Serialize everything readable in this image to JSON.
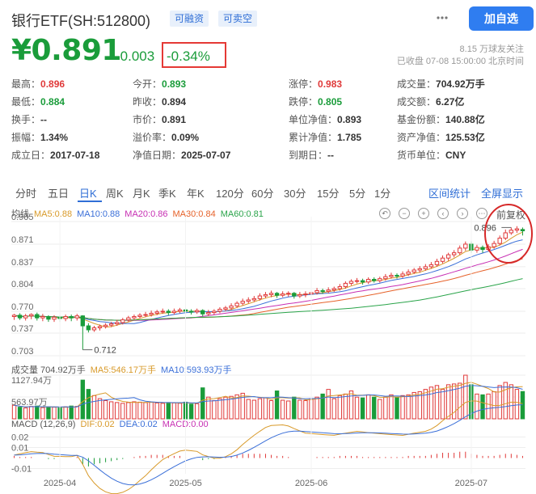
{
  "header": {
    "fund_name": "银行ETF(SH:512800)",
    "tags": [
      "可融资",
      "可卖空"
    ],
    "follow_button": "加自选"
  },
  "quote": {
    "price": "¥0.891",
    "change": "-0.003",
    "change_pct": "-0.34%",
    "followers": "8.15 万球友关注",
    "close_time": "已收盘 07-08 15:00:00 北京时间"
  },
  "stats": [
    {
      "label": "最高：",
      "value": "0.896",
      "tone": "up"
    },
    {
      "label": "今开：",
      "value": "0.893",
      "tone": "down"
    },
    {
      "label": "涨停：",
      "value": "0.983",
      "tone": "up"
    },
    {
      "label": "成交量：",
      "value": "704.92万手",
      "tone": ""
    },
    {
      "label": "最低：",
      "value": "0.884",
      "tone": "down"
    },
    {
      "label": "昨收：",
      "value": "0.894",
      "tone": ""
    },
    {
      "label": "跌停：",
      "value": "0.805",
      "tone": "down"
    },
    {
      "label": "成交额：",
      "value": "6.27亿",
      "tone": ""
    },
    {
      "label": "换手：",
      "value": "--",
      "tone": ""
    },
    {
      "label": "市价：",
      "value": "0.891",
      "tone": ""
    },
    {
      "label": "单位净值：",
      "value": "0.893",
      "tone": ""
    },
    {
      "label": "基金份额：",
      "value": "140.88亿",
      "tone": ""
    },
    {
      "label": "振幅：",
      "value": "1.34%",
      "tone": ""
    },
    {
      "label": "溢价率：",
      "value": "0.09%",
      "tone": ""
    },
    {
      "label": "累计净值：",
      "value": "1.785",
      "tone": ""
    },
    {
      "label": "资产净值：",
      "value": "125.53亿",
      "tone": ""
    },
    {
      "label": "成立日：",
      "value": "2017-07-18",
      "tone": ""
    },
    {
      "label": "净值日期：",
      "value": "2025-07-07",
      "tone": ""
    },
    {
      "label": "到期日：",
      "value": "--",
      "tone": ""
    },
    {
      "label": "货币单位：",
      "value": "CNY",
      "tone": ""
    }
  ],
  "tabs": [
    "分时",
    "五日",
    "日K",
    "周K",
    "月K",
    "季K",
    "年K",
    "120分",
    "60分",
    "30分",
    "15分",
    "5分",
    "1分"
  ],
  "active_tab": "日K",
  "tab_actions": [
    "区间统计",
    "全屏显示"
  ],
  "adjust_label": "前复权",
  "ma_legend": {
    "title": "均线",
    "items": [
      {
        "text": "MA5:0.88",
        "color": "#d89a2a"
      },
      {
        "text": "MA10:0.88",
        "color": "#3a6fd8"
      },
      {
        "text": "MA20:0.86",
        "color": "#c72fb3"
      },
      {
        "text": "MA30:0.84",
        "color": "#e6622a"
      },
      {
        "text": "MA60:0.81",
        "color": "#2aa44a"
      }
    ]
  },
  "volume_legend": {
    "title": "成交量 704.92万手",
    "items": [
      {
        "text": "MA5:546.17万手",
        "color": "#d89a2a"
      },
      {
        "text": "MA10:593.93万手",
        "color": "#3a6fd8"
      }
    ]
  },
  "macd_legend": {
    "title": "MACD (12,26,9)",
    "items": [
      {
        "text": "DIF:0.02",
        "color": "#d89a2a"
      },
      {
        "text": "DEA:0.02",
        "color": "#3a6fd8"
      },
      {
        "text": "MACD:0.00",
        "color": "#c72fb3"
      }
    ]
  },
  "chart_data": {
    "type": "candlestick",
    "price_axis_ticks": [
      "0.905",
      "0.871",
      "0.837",
      "0.804",
      "0.770",
      "0.737",
      "0.703"
    ],
    "price_ylim": [
      0.703,
      0.905
    ],
    "volume_axis_ticks": [
      "1127.94万",
      "563.97万"
    ],
    "volume_ylim": [
      0,
      1127.94
    ],
    "macd_axis_ticks": [
      "0.02",
      "0.01",
      "-0.01"
    ],
    "macd_ylim": [
      -0.015,
      0.025
    ],
    "date_labels": [
      "2025-04",
      "2025-05",
      "2025-06",
      "2025-07"
    ],
    "annotations": [
      {
        "text": "0.712",
        "value": 0.712
      },
      {
        "text": "0.896",
        "value": 0.896
      }
    ],
    "candles": [
      [
        0.762,
        0.764,
        0.766,
        0.757
      ],
      [
        0.764,
        0.76,
        0.767,
        0.757
      ],
      [
        0.76,
        0.763,
        0.766,
        0.756
      ],
      [
        0.763,
        0.765,
        0.767,
        0.758
      ],
      [
        0.765,
        0.76,
        0.768,
        0.756
      ],
      [
        0.76,
        0.762,
        0.766,
        0.755
      ],
      [
        0.762,
        0.758,
        0.764,
        0.754
      ],
      [
        0.758,
        0.761,
        0.764,
        0.754
      ],
      [
        0.761,
        0.759,
        0.764,
        0.754
      ],
      [
        0.759,
        0.762,
        0.765,
        0.755
      ],
      [
        0.762,
        0.76,
        0.765,
        0.755
      ],
      [
        0.76,
        0.763,
        0.766,
        0.756
      ],
      [
        0.763,
        0.748,
        0.764,
        0.712
      ],
      [
        0.748,
        0.742,
        0.752,
        0.738
      ],
      [
        0.742,
        0.745,
        0.748,
        0.739
      ],
      [
        0.745,
        0.747,
        0.75,
        0.741
      ],
      [
        0.747,
        0.749,
        0.752,
        0.744
      ],
      [
        0.749,
        0.751,
        0.754,
        0.746
      ],
      [
        0.751,
        0.753,
        0.757,
        0.748
      ],
      [
        0.753,
        0.757,
        0.76,
        0.75
      ],
      [
        0.757,
        0.76,
        0.763,
        0.754
      ],
      [
        0.76,
        0.762,
        0.765,
        0.757
      ],
      [
        0.762,
        0.764,
        0.767,
        0.759
      ],
      [
        0.764,
        0.765,
        0.769,
        0.761
      ],
      [
        0.765,
        0.767,
        0.771,
        0.762
      ],
      [
        0.767,
        0.769,
        0.772,
        0.764
      ],
      [
        0.769,
        0.77,
        0.774,
        0.766
      ],
      [
        0.77,
        0.768,
        0.773,
        0.764
      ],
      [
        0.768,
        0.77,
        0.774,
        0.765
      ],
      [
        0.77,
        0.772,
        0.775,
        0.767
      ],
      [
        0.772,
        0.77,
        0.775,
        0.766
      ],
      [
        0.77,
        0.769,
        0.773,
        0.765
      ],
      [
        0.769,
        0.771,
        0.774,
        0.766
      ],
      [
        0.771,
        0.766,
        0.773,
        0.762
      ],
      [
        0.766,
        0.768,
        0.772,
        0.763
      ],
      [
        0.768,
        0.77,
        0.773,
        0.765
      ],
      [
        0.77,
        0.773,
        0.776,
        0.767
      ],
      [
        0.773,
        0.775,
        0.778,
        0.77
      ],
      [
        0.775,
        0.778,
        0.782,
        0.772
      ],
      [
        0.778,
        0.782,
        0.785,
        0.775
      ],
      [
        0.782,
        0.785,
        0.789,
        0.779
      ],
      [
        0.785,
        0.787,
        0.791,
        0.782
      ],
      [
        0.787,
        0.789,
        0.793,
        0.784
      ],
      [
        0.789,
        0.793,
        0.797,
        0.786
      ],
      [
        0.793,
        0.795,
        0.799,
        0.79
      ],
      [
        0.795,
        0.797,
        0.801,
        0.791
      ],
      [
        0.797,
        0.794,
        0.799,
        0.79
      ],
      [
        0.794,
        0.796,
        0.8,
        0.791
      ],
      [
        0.796,
        0.797,
        0.8,
        0.792
      ],
      [
        0.797,
        0.793,
        0.799,
        0.789
      ],
      [
        0.793,
        0.795,
        0.799,
        0.79
      ],
      [
        0.795,
        0.796,
        0.8,
        0.791
      ],
      [
        0.796,
        0.798,
        0.802,
        0.793
      ],
      [
        0.798,
        0.801,
        0.805,
        0.795
      ],
      [
        0.801,
        0.8,
        0.804,
        0.796
      ],
      [
        0.8,
        0.802,
        0.806,
        0.797
      ],
      [
        0.802,
        0.804,
        0.807,
        0.799
      ],
      [
        0.804,
        0.807,
        0.811,
        0.801
      ],
      [
        0.807,
        0.812,
        0.815,
        0.804
      ],
      [
        0.812,
        0.815,
        0.818,
        0.809
      ],
      [
        0.815,
        0.816,
        0.82,
        0.812
      ],
      [
        0.816,
        0.814,
        0.819,
        0.81
      ],
      [
        0.814,
        0.818,
        0.821,
        0.811
      ],
      [
        0.818,
        0.816,
        0.821,
        0.813
      ],
      [
        0.816,
        0.819,
        0.822,
        0.813
      ],
      [
        0.819,
        0.822,
        0.826,
        0.816
      ],
      [
        0.822,
        0.824,
        0.828,
        0.819
      ],
      [
        0.824,
        0.823,
        0.827,
        0.819
      ],
      [
        0.823,
        0.826,
        0.83,
        0.82
      ],
      [
        0.826,
        0.829,
        0.833,
        0.823
      ],
      [
        0.829,
        0.832,
        0.835,
        0.826
      ],
      [
        0.832,
        0.834,
        0.838,
        0.828
      ],
      [
        0.834,
        0.837,
        0.841,
        0.831
      ],
      [
        0.837,
        0.84,
        0.844,
        0.834
      ],
      [
        0.84,
        0.845,
        0.849,
        0.837
      ],
      [
        0.845,
        0.85,
        0.854,
        0.842
      ],
      [
        0.85,
        0.855,
        0.858,
        0.846
      ],
      [
        0.855,
        0.858,
        0.862,
        0.851
      ],
      [
        0.858,
        0.865,
        0.869,
        0.855
      ],
      [
        0.865,
        0.871,
        0.875,
        0.861
      ],
      [
        0.871,
        0.862,
        0.875,
        0.858
      ],
      [
        0.862,
        0.866,
        0.87,
        0.858
      ],
      [
        0.866,
        0.863,
        0.869,
        0.858
      ],
      [
        0.863,
        0.867,
        0.871,
        0.86
      ],
      [
        0.867,
        0.872,
        0.876,
        0.864
      ],
      [
        0.872,
        0.88,
        0.884,
        0.869
      ],
      [
        0.88,
        0.888,
        0.893,
        0.877
      ],
      [
        0.888,
        0.892,
        0.896,
        0.885
      ],
      [
        0.892,
        0.894,
        0.898,
        0.888
      ],
      [
        0.893,
        0.891,
        0.896,
        0.884
      ]
    ],
    "volumes": [
      350,
      300,
      280,
      320,
      330,
      290,
      310,
      300,
      280,
      310,
      330,
      320,
      1000,
      760,
      600,
      520,
      470,
      440,
      420,
      400,
      420,
      440,
      430,
      420,
      430,
      410,
      400,
      420,
      410,
      400,
      430,
      380,
      390,
      800,
      560,
      470,
      520,
      560,
      580,
      620,
      660,
      500,
      480,
      520,
      540,
      470,
      720,
      480,
      460,
      560,
      480,
      470,
      520,
      560,
      640,
      760,
      520,
      600,
      640,
      720,
      560,
      540,
      620,
      560,
      500,
      560,
      620,
      560,
      600,
      620,
      680,
      700,
      760,
      820,
      860,
      760,
      880,
      900,
      920,
      1127,
      880,
      640,
      620,
      640,
      700,
      860,
      940,
      880,
      760,
      705
    ],
    "macd_hist": [
      0.002,
      0.001,
      0.001,
      0.001,
      0.0,
      0.0,
      -0.001,
      -0.001,
      0.0,
      0.0,
      0.0,
      0.001,
      -0.006,
      -0.008,
      -0.006,
      -0.005,
      -0.004,
      -0.003,
      -0.002,
      -0.001,
      0.0,
      0.001,
      0.002,
      0.002,
      0.003,
      0.003,
      0.003,
      0.002,
      0.002,
      0.002,
      0.001,
      0.0,
      0.0,
      -0.002,
      -0.001,
      -0.001,
      0.0,
      0.001,
      0.002,
      0.003,
      0.004,
      0.004,
      0.004,
      0.004,
      0.004,
      0.003,
      0.002,
      0.002,
      0.001,
      0.0,
      0.0,
      0.0,
      0.001,
      0.001,
      0.001,
      0.001,
      0.001,
      0.002,
      0.002,
      0.002,
      0.002,
      0.001,
      0.001,
      0.001,
      0.001,
      0.001,
      0.001,
      0.001,
      0.001,
      0.002,
      0.002,
      0.002,
      0.002,
      0.003,
      0.004,
      0.005,
      0.005,
      0.005,
      0.006,
      0.006,
      0.004,
      0.003,
      0.002,
      0.002,
      0.002,
      0.003,
      0.004,
      0.004,
      0.003,
      0.002
    ]
  }
}
